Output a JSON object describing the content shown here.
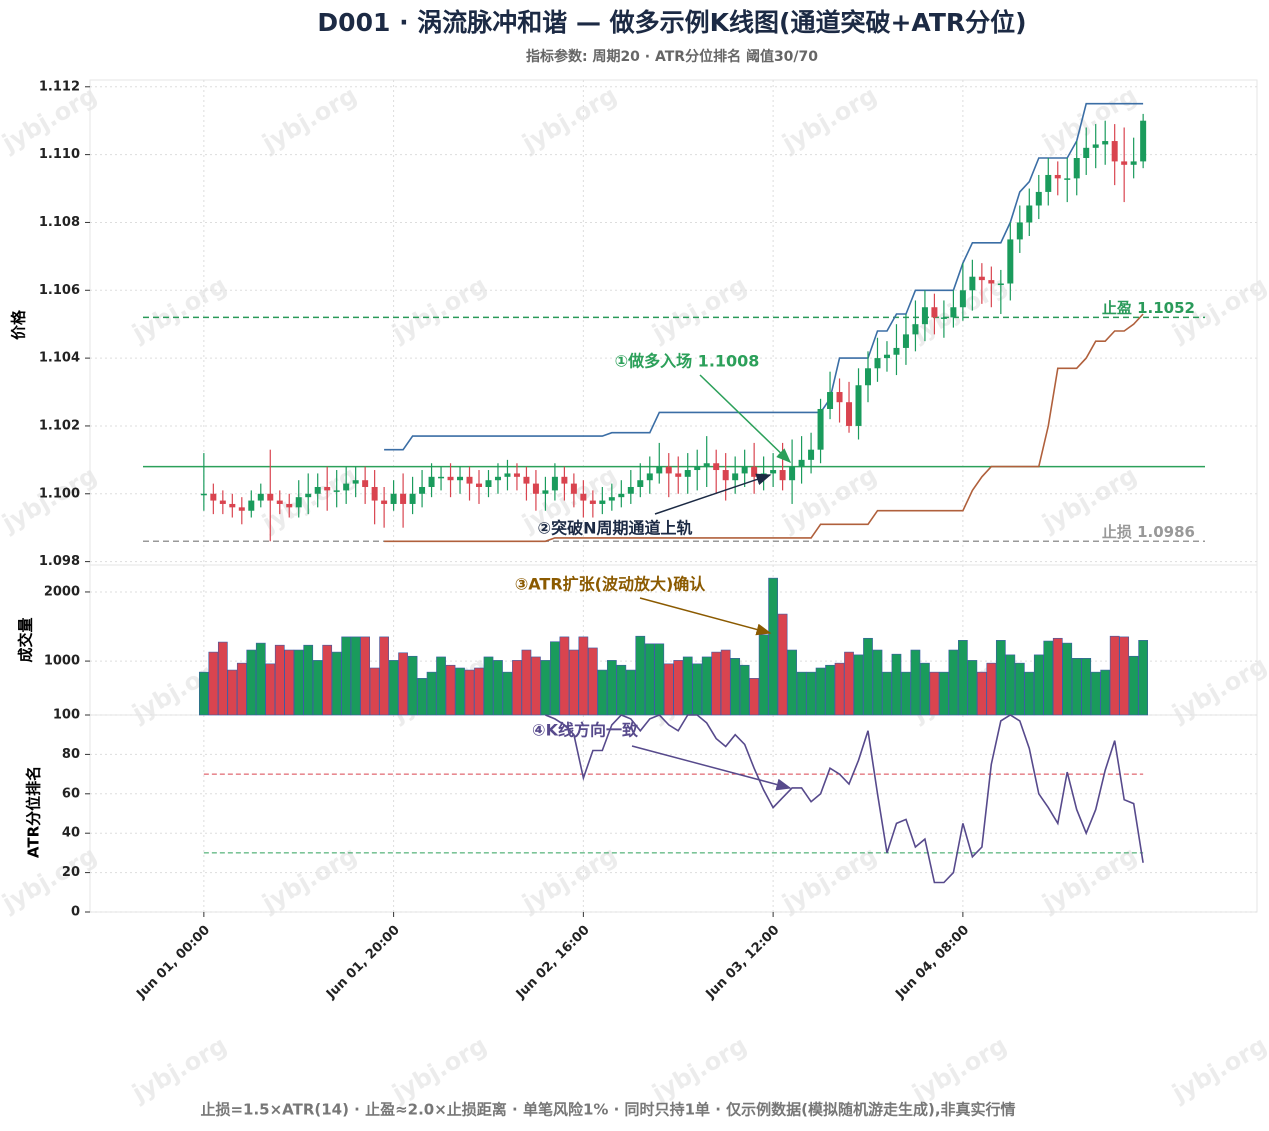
{
  "chart_data": {
    "type": "candlestick",
    "title": "D001 · 涡流脉冲和谐 — 做多示例K线图(通道突破+ATR分位)",
    "subtitle": "指标参数: 周期20 · ATR分位排名 阈值30/70",
    "footer": "止损=1.5×ATR(14) · 止盈≈2.0×止损距离 · 单笔风险1% · 同时只持1单 · 仅示例数据(模拟随机游走生成),非真实行情",
    "watermark": "jybj.org",
    "grid": true,
    "x": [
      0,
      1,
      2,
      3,
      4,
      5,
      6,
      7,
      8,
      9,
      10,
      11,
      12,
      13,
      14,
      15,
      16,
      17,
      18,
      19,
      20,
      21,
      22,
      23,
      24,
      25,
      26,
      27,
      28,
      29,
      30,
      31,
      32,
      33,
      34,
      35,
      36,
      37,
      38,
      39,
      40,
      41,
      42,
      43,
      44,
      45,
      46,
      47,
      48,
      49,
      50,
      51,
      52,
      53,
      54,
      55,
      56,
      57,
      58,
      59,
      60,
      61,
      62,
      63,
      64,
      65,
      66,
      67,
      68,
      69,
      70,
      71,
      72,
      73,
      74,
      75,
      76,
      77,
      78,
      79,
      80,
      81,
      82,
      83,
      84,
      85,
      86,
      87,
      88,
      89,
      90,
      91,
      92,
      93,
      94,
      95,
      96,
      97,
      98,
      99
    ],
    "xlim": [
      -12,
      111
    ],
    "xticks": [
      {
        "value": 0,
        "label": "Jun 01, 00:00"
      },
      {
        "value": 20,
        "label": "Jun 01, 20:00"
      },
      {
        "value": 40,
        "label": "Jun 02, 16:00"
      },
      {
        "value": 60,
        "label": "Jun 03, 12:00"
      },
      {
        "value": 80,
        "label": "Jun 04, 08:00"
      }
    ],
    "ylabel": "价格",
    "ylim": [
      1.0979,
      1.1122
    ],
    "yticks": [
      1.098,
      {
        "value": 1.1,
        "label": "1.100"
      },
      1.102,
      1.104,
      1.106,
      1.108,
      {
        "value": 1.11,
        "label": "1.110"
      },
      1.112
    ],
    "up_color": "#1a9b5c",
    "down_color": "#d9444f",
    "open": [
      1.1,
      1.1,
      1.0998,
      1.0997,
      1.0996,
      1.0995,
      1.0998,
      1.1,
      1.0998,
      1.0997,
      1.0996,
      1.0999,
      1.1,
      1.1002,
      1.1001,
      1.1001,
      1.1003,
      1.1004,
      1.1002,
      1.0998,
      1.0997,
      1.1,
      1.0997,
      1.1,
      1.1002,
      1.1005,
      1.1005,
      1.1004,
      1.1005,
      1.1003,
      1.1002,
      1.1004,
      1.1005,
      1.1006,
      1.1005,
      1.1003,
      1.1,
      1.1001,
      1.1005,
      1.1003,
      1.1,
      1.0998,
      1.0997,
      1.0998,
      1.0999,
      1.1,
      1.1002,
      1.1004,
      1.1006,
      1.1008,
      1.1006,
      1.1005,
      1.1007,
      1.1008,
      1.1009,
      1.1007,
      1.1004,
      1.1006,
      1.1008,
      1.1005,
      1.1006,
      1.1007,
      1.1004,
      1.1008,
      1.101,
      1.1013,
      1.1025,
      1.103,
      1.1027,
      1.102,
      1.1032,
      1.1037,
      1.104,
      1.1041,
      1.1043,
      1.1047,
      1.105,
      1.1055,
      1.1052,
      1.1052,
      1.1055,
      1.106,
      1.1064,
      1.1063,
      1.1062,
      1.1062,
      1.1075,
      1.108,
      1.1085,
      1.1089,
      1.1094,
      1.1093,
      1.1093,
      1.1099,
      1.1102,
      1.1103,
      1.1104,
      1.1098,
      1.1097,
      1.1098
    ],
    "high": [
      1.1012,
      1.1003,
      1.1001,
      1.1,
      1.0999,
      1.1001,
      1.1003,
      1.1013,
      1.1001,
      1.1,
      1.1004,
      1.1006,
      1.1006,
      1.1008,
      1.1007,
      1.1008,
      1.1008,
      1.1008,
      1.1007,
      1.1002,
      1.1004,
      1.1006,
      1.1005,
      1.1007,
      1.1009,
      1.1008,
      1.1009,
      1.1008,
      1.1008,
      1.1007,
      1.1007,
      1.1009,
      1.101,
      1.1009,
      1.1008,
      1.1007,
      1.1005,
      1.1009,
      1.1008,
      1.1006,
      1.1004,
      1.1001,
      1.1002,
      1.1003,
      1.1004,
      1.1007,
      1.1009,
      1.1011,
      1.1015,
      1.1012,
      1.1011,
      1.1012,
      1.1013,
      1.1017,
      1.1013,
      1.1012,
      1.1011,
      1.1013,
      1.1015,
      1.1011,
      1.1012,
      1.1015,
      1.1016,
      1.1017,
      1.1018,
      1.1028,
      1.1036,
      1.1034,
      1.1033,
      1.1037,
      1.1042,
      1.1046,
      1.1045,
      1.105,
      1.1053,
      1.1057,
      1.106,
      1.1059,
      1.1057,
      1.106,
      1.1068,
      1.1069,
      1.1068,
      1.1067,
      1.1066,
      1.108,
      1.1085,
      1.109,
      1.1094,
      1.1099,
      1.1098,
      1.1099,
      1.1104,
      1.1108,
      1.1109,
      1.111,
      1.1109,
      1.1108,
      1.1105,
      1.1112
    ],
    "low": [
      1.0995,
      1.0994,
      1.0994,
      1.0993,
      1.0991,
      1.0993,
      1.0996,
      1.0986,
      1.0994,
      1.0993,
      1.0993,
      1.0994,
      1.0996,
      1.0995,
      1.0996,
      1.0997,
      1.0999,
      1.0997,
      1.0991,
      1.099,
      1.0995,
      1.099,
      1.0994,
      1.0996,
      1.0999,
      1.1001,
      1.0999,
      1.1,
      1.0998,
      1.0997,
      1.0999,
      1.1,
      1.1001,
      1.1001,
      1.0998,
      1.0995,
      1.0995,
      1.0998,
      1.0998,
      1.0996,
      1.0993,
      1.0993,
      1.0994,
      1.0995,
      1.0996,
      1.0997,
      1.0999,
      1.1,
      1.1003,
      1.0999,
      1.1,
      1.1,
      1.1001,
      1.1002,
      1.1,
      1.0998,
      1.1,
      1.1002,
      1.1,
      1.1001,
      1.1002,
      1.1001,
      1.0997,
      1.1003,
      1.1006,
      1.1009,
      1.1022,
      1.1021,
      1.1018,
      1.1016,
      1.1027,
      1.1033,
      1.1036,
      1.1035,
      1.1038,
      1.1042,
      1.1045,
      1.1047,
      1.1046,
      1.1049,
      1.1051,
      1.1054,
      1.1056,
      1.1055,
      1.1053,
      1.1057,
      1.1071,
      1.1076,
      1.1081,
      1.1085,
      1.1088,
      1.1086,
      1.1088,
      1.1094,
      1.1096,
      1.1097,
      1.1091,
      1.1086,
      1.1093,
      1.1096
    ],
    "close": [
      1.1,
      1.0998,
      1.0997,
      1.0996,
      1.0995,
      1.0998,
      1.1,
      1.0998,
      1.0997,
      1.0996,
      1.0999,
      1.1,
      1.1002,
      1.1001,
      1.1001,
      1.1003,
      1.1004,
      1.1002,
      1.0998,
      1.0997,
      1.1,
      1.0997,
      1.1,
      1.1002,
      1.1005,
      1.1005,
      1.1004,
      1.1005,
      1.1003,
      1.1002,
      1.1004,
      1.1005,
      1.1006,
      1.1005,
      1.1003,
      1.1,
      1.1001,
      1.1005,
      1.1003,
      1.1,
      1.0998,
      1.0997,
      1.0998,
      1.0999,
      1.1,
      1.1002,
      1.1004,
      1.1006,
      1.1008,
      1.1006,
      1.1005,
      1.1007,
      1.1008,
      1.1009,
      1.1007,
      1.1004,
      1.1006,
      1.1008,
      1.1005,
      1.1006,
      1.1007,
      1.1004,
      1.1008,
      1.101,
      1.1013,
      1.1025,
      1.103,
      1.1027,
      1.102,
      1.1032,
      1.1037,
      1.104,
      1.1041,
      1.1043,
      1.1047,
      1.105,
      1.1055,
      1.1052,
      1.1052,
      1.1055,
      1.106,
      1.1064,
      1.1063,
      1.1062,
      1.1062,
      1.1075,
      1.108,
      1.1085,
      1.1089,
      1.1094,
      1.1093,
      1.1093,
      1.1099,
      1.1102,
      1.1103,
      1.1104,
      1.1098,
      1.1097,
      1.1098,
      1.111
    ],
    "channel_upper": {
      "color": "#3b6ea5",
      "values": [
        null,
        null,
        null,
        null,
        null,
        null,
        null,
        null,
        null,
        null,
        null,
        null,
        null,
        null,
        null,
        null,
        null,
        null,
        null,
        1.1013,
        1.1013,
        1.1013,
        1.1017,
        1.1017,
        1.1017,
        1.1017,
        1.1017,
        1.1017,
        1.1017,
        1.1017,
        1.1017,
        1.1017,
        1.1017,
        1.1017,
        1.1017,
        1.1017,
        1.1017,
        1.1017,
        1.1017,
        1.1017,
        1.1017,
        1.1017,
        1.1017,
        1.1018,
        1.1018,
        1.1018,
        1.1018,
        1.1018,
        1.1024,
        1.1024,
        1.1024,
        1.1024,
        1.1024,
        1.1024,
        1.1024,
        1.1024,
        1.1024,
        1.1024,
        1.1024,
        1.1024,
        1.1024,
        1.1024,
        1.1024,
        1.1024,
        1.1024,
        1.1024,
        1.1028,
        1.104,
        1.104,
        1.104,
        1.104,
        1.1048,
        1.1048,
        1.1053,
        1.1053,
        1.106,
        1.106,
        1.106,
        1.106,
        1.106,
        1.1068,
        1.1074,
        1.1074,
        1.1074,
        1.1074,
        1.108,
        1.1089,
        1.1092,
        1.1099,
        1.1099,
        1.1099,
        1.1099,
        1.1104,
        1.1115,
        1.1115,
        1.1115,
        1.1115,
        1.1115,
        1.1115,
        1.1115
      ]
    },
    "channel_lower": {
      "color": "#b0603c",
      "values": [
        null,
        null,
        null,
        null,
        null,
        null,
        null,
        null,
        null,
        null,
        null,
        null,
        null,
        null,
        null,
        null,
        null,
        null,
        null,
        1.0986,
        1.0986,
        1.0986,
        1.0986,
        1.0986,
        1.0986,
        1.0986,
        1.0986,
        1.0986,
        1.0986,
        1.0986,
        1.0986,
        1.0986,
        1.0986,
        1.0986,
        1.0986,
        1.0986,
        1.0986,
        1.0987,
        1.0987,
        1.0987,
        1.0987,
        1.0987,
        1.0987,
        1.0987,
        1.0987,
        1.0987,
        1.0987,
        1.0987,
        1.0987,
        1.0987,
        1.0987,
        1.0987,
        1.0987,
        1.0987,
        1.0987,
        1.0987,
        1.0987,
        1.0987,
        1.0987,
        1.0987,
        1.0987,
        1.0987,
        1.0987,
        1.0987,
        1.0987,
        1.0991,
        1.0991,
        1.0991,
        1.0991,
        1.0991,
        1.0991,
        1.0995,
        1.0995,
        1.0995,
        1.0995,
        1.0995,
        1.0995,
        1.0995,
        1.0995,
        1.0995,
        1.0995,
        1.1001,
        1.1005,
        1.1008,
        1.1008,
        1.1008,
        1.1008,
        1.1008,
        1.1008,
        1.102,
        1.1037,
        1.1037,
        1.1037,
        1.104,
        1.1045,
        1.1045,
        1.1048,
        1.1048,
        1.105,
        1.1053
      ]
    },
    "entry": {
      "value": 1.1008,
      "color": "#2ca05a"
    },
    "take_profit": {
      "value": 1.1052,
      "label": "止盈 1.1052",
      "color": "#2a9a5a"
    },
    "stop_loss": {
      "value": 1.0986,
      "label": "止损 1.0986",
      "color": "#999999"
    },
    "annotations": [
      "①做多入场 1.1008",
      "②突破N周期通道上轨",
      "③ATR扩张(波动放大)确认",
      "④K线方向一致"
    ],
    "volume": {
      "ylabel": "成交量",
      "ylim": [
        220,
        2390
      ],
      "yticks": [
        1000,
        2000
      ],
      "values": [
        840,
        1130,
        1275,
        870,
        970,
        1160,
        1260,
        960,
        1230,
        1160,
        1160,
        1230,
        1010,
        1230,
        1130,
        1350,
        1350,
        1350,
        900,
        1350,
        1010,
        1120,
        1070,
        750,
        840,
        1060,
        940,
        900,
        870,
        900,
        1060,
        1010,
        840,
        1010,
        1160,
        1060,
        1010,
        1280,
        1350,
        1160,
        1350,
        1190,
        870,
        1010,
        940,
        870,
        1360,
        1250,
        1250,
        960,
        1010,
        1060,
        960,
        1060,
        1130,
        1160,
        1040,
        940,
        750,
        1380,
        2200,
        1680,
        1160,
        840,
        840,
        900,
        940,
        970,
        1130,
        1090,
        1330,
        1160,
        840,
        1100,
        840,
        1160,
        970,
        840,
        840,
        1160,
        1300,
        1010,
        840,
        970,
        1300,
        1090,
        970,
        840,
        1090,
        1290,
        1330,
        1260,
        1040,
        1040,
        840,
        870,
        1360,
        1350,
        1070,
        1300
      ]
    },
    "atr_rank": {
      "ylabel": "ATR分位排名",
      "ylim": [
        0,
        100
      ],
      "yticks": [
        0,
        20,
        40,
        60,
        80,
        100
      ],
      "color": "#574a8c",
      "upper_threshold": 70,
      "lower_threshold": 30,
      "values": [
        null,
        null,
        null,
        null,
        null,
        null,
        null,
        null,
        null,
        null,
        null,
        null,
        null,
        null,
        null,
        null,
        null,
        null,
        null,
        null,
        null,
        null,
        null,
        null,
        null,
        null,
        null,
        null,
        null,
        null,
        null,
        null,
        null,
        null,
        null,
        null,
        100,
        98,
        95,
        90,
        68,
        82,
        82,
        95,
        100,
        98,
        92,
        98,
        100,
        95,
        92,
        100,
        100,
        96,
        88,
        84,
        90,
        85,
        73,
        62,
        53,
        58,
        63,
        63,
        56,
        60,
        73,
        70,
        65,
        77,
        92,
        60,
        30,
        45,
        47,
        33,
        37,
        15,
        15,
        20,
        45,
        28,
        33,
        75,
        97,
        100,
        97,
        83,
        60,
        53,
        45,
        71,
        52,
        40,
        52,
        72,
        87,
        57,
        55,
        25
      ]
    }
  }
}
